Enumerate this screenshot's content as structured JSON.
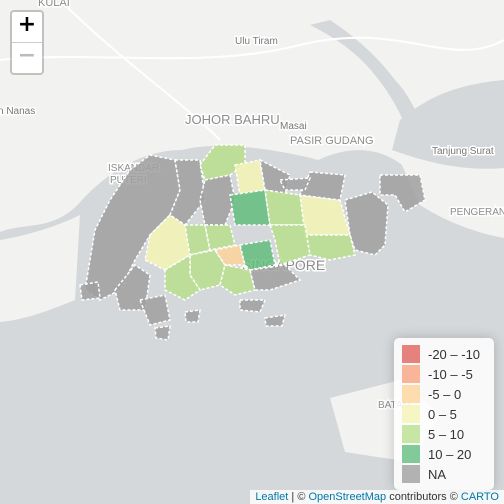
{
  "map": {
    "place_labels": [
      "KULAI",
      "Ulu Tiram",
      "n Nanas",
      "JOHOR BAHRU",
      "Masai",
      "PASIR GUDANG",
      "ISKANDAR",
      "PUTERI",
      "Tanjung Surat",
      "PENGERANG",
      "SINGAPORE",
      "BATAM"
    ],
    "zoom": {
      "in": "+",
      "out": "−"
    },
    "legend": {
      "items": [
        {
          "label": "-20 – -10",
          "color": "#e0645f"
        },
        {
          "label": "-10 – -5",
          "color": "#f7a47f"
        },
        {
          "label": "-5 – 0",
          "color": "#fdd39a"
        },
        {
          "label": "0 – 5",
          "color": "#f3f4b4"
        },
        {
          "label": "5 – 10",
          "color": "#b9df8c"
        },
        {
          "label": "10 – 20",
          "color": "#63bd7d"
        },
        {
          "label": "NA",
          "color": "#a0a0a0"
        }
      ]
    },
    "attribution": [
      "Leaflet",
      " | © ",
      "OpenStreetMap",
      " contributors © ",
      "CARTO"
    ]
  }
}
